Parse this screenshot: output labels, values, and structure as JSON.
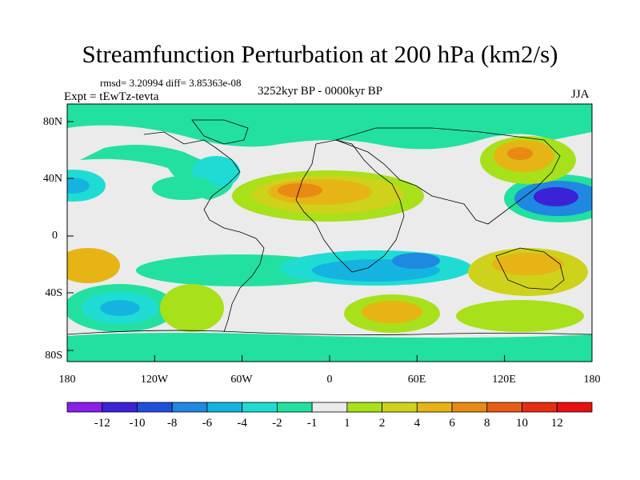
{
  "title": "Streamfunction Perturbation at 200 hPa (km2/s)",
  "stats": "rmsd= 3.20994 diff= 3.85363e-08",
  "experiment": "Expt = tEwTz-tevta",
  "period": "3252kyr BP - 0000kyr BP",
  "season": "JJA",
  "lat_labels": [
    "80N",
    "40N",
    "0",
    "40S",
    "80S"
  ],
  "lon_labels": [
    "180",
    "120W",
    "60W",
    "0",
    "60E",
    "120E",
    "180"
  ],
  "colorbar": {
    "labels": [
      "-12",
      "-10",
      "-8",
      "-6",
      "-4",
      "-2",
      "-1",
      "1",
      "2",
      "4",
      "6",
      "8",
      "10",
      "12"
    ],
    "colors": [
      "#8a1fe8",
      "#3b22d6",
      "#1f4fdc",
      "#1f88e0",
      "#15b4e0",
      "#1edcd4",
      "#22e0a0",
      "#ebebeb",
      "#a8e01a",
      "#cfd21a",
      "#e6b414",
      "#e88a14",
      "#e85c14",
      "#e82c14",
      "#e80f0f"
    ]
  },
  "colors": {
    "background_field": "#ebebeb",
    "coast": "#000000"
  }
}
